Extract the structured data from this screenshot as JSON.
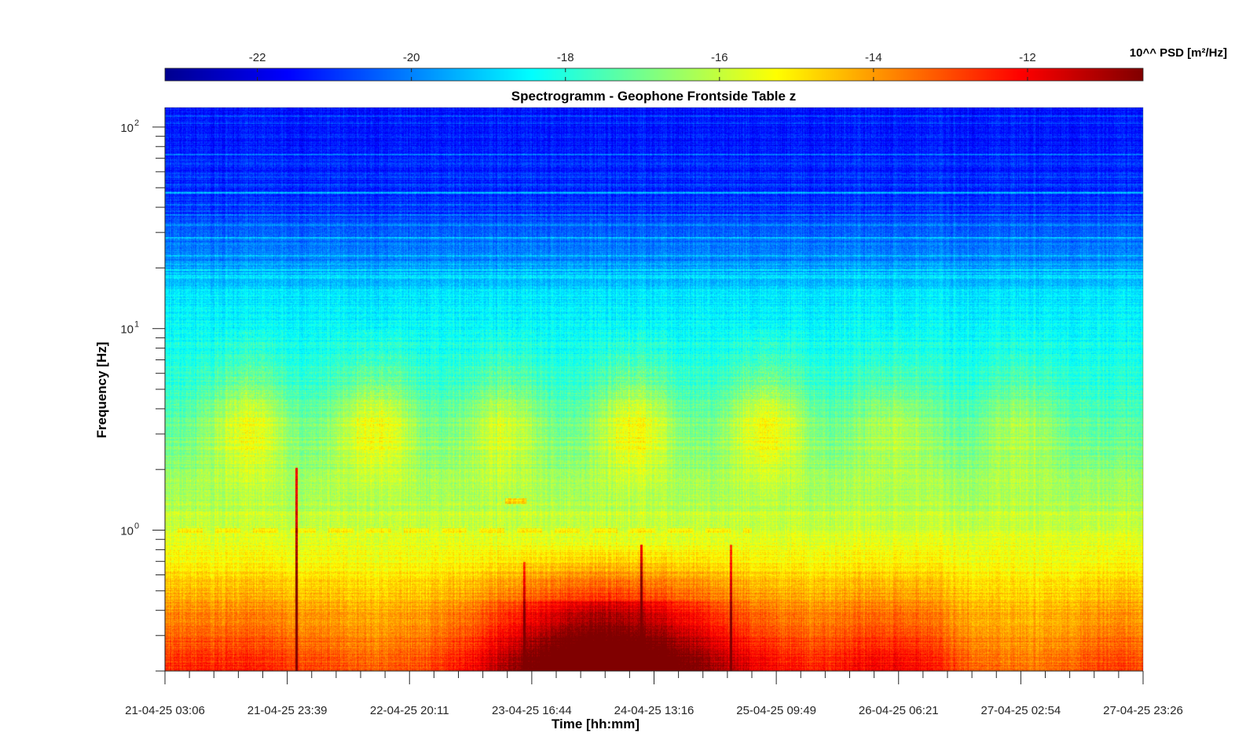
{
  "chart_data": {
    "type": "heatmap",
    "title": "Spectrogramm - Geophone Frontside Table z",
    "xlabel": "Time [hh:mm]",
    "ylabel": "Frequency [Hz]",
    "y_scale": "log",
    "ylim": [
      0.2,
      125
    ],
    "y_major_ticks": [
      1,
      10,
      100
    ],
    "y_tick_labels": [
      "10",
      "10",
      "10"
    ],
    "y_tick_exponents": [
      "0",
      "1",
      "2"
    ],
    "x_tick_labels": [
      "21-04-25 03:06",
      "21-04-25 23:39",
      "22-04-25 20:11",
      "23-04-25 16:44",
      "24-04-25 13:16",
      "25-04-25 09:49",
      "26-04-25 06:21",
      "27-04-25 02:54",
      "27-04-25 23:26"
    ],
    "xlim": [
      "21-04-25 03:06",
      "27-04-25 23:26"
    ],
    "grid": false,
    "colormap": "jet",
    "colorbar": {
      "label": "10^^ PSD [m²/Hz]",
      "location": "top",
      "range": [
        -23.2,
        -10.5
      ],
      "ticks": [
        -22,
        -20,
        -18,
        -16,
        -14,
        -12
      ],
      "tick_labels": [
        "-22",
        "-20",
        "-18",
        "-16",
        "-14",
        "-12"
      ]
    },
    "features": {
      "daily_activity_band_hz": [
        2,
        5
      ],
      "persistent_line_hz": 1.0,
      "low_frequency_max_period": "23-04-25 16:44 to 24-04-25 13:16"
    }
  }
}
